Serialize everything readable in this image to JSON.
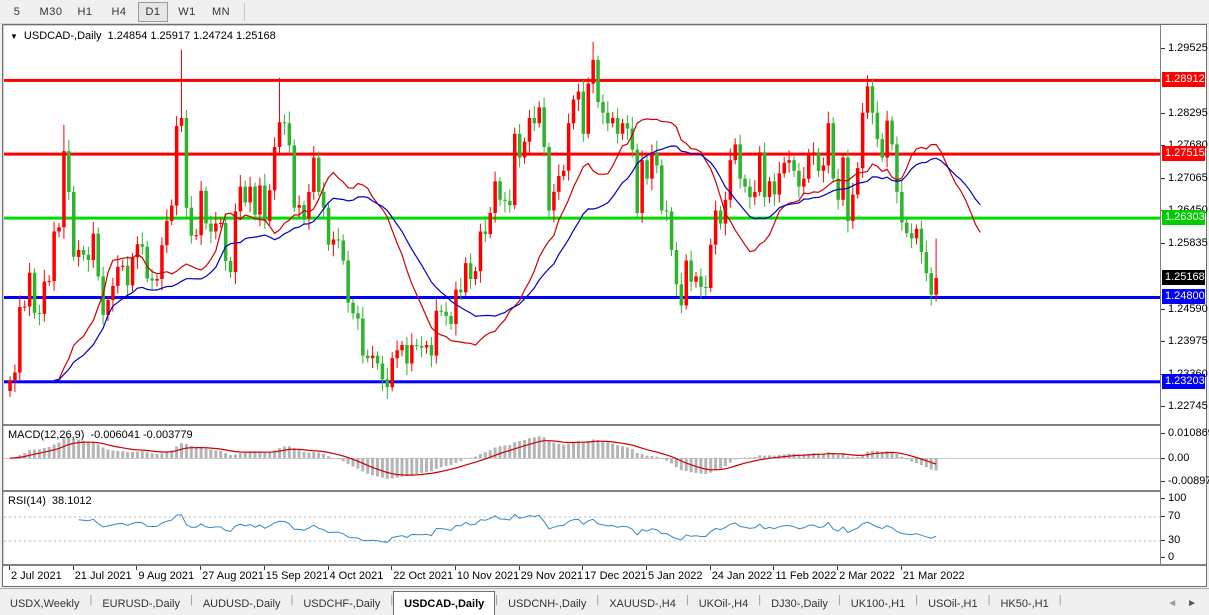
{
  "toolbar": {
    "items": [
      {
        "label": "5",
        "active": false
      },
      {
        "label": "M30",
        "active": false
      },
      {
        "label": "H1",
        "active": false
      },
      {
        "label": "H4",
        "active": false
      },
      {
        "label": "D1",
        "active": true
      },
      {
        "label": "W1",
        "active": false
      },
      {
        "label": "MN",
        "active": false
      }
    ]
  },
  "chart": {
    "dropdown_icon": "▼",
    "title": "USDCAD-,Daily",
    "ohlc": "1.24854 1.25917 1.24724 1.25168"
  },
  "price_axis": {
    "ticks": [
      "1.29525",
      "1.28295",
      "1.27680",
      "1.27065",
      "1.26450",
      "1.25835",
      "1.24590",
      "1.23975",
      "1.23360",
      "1.22745"
    ],
    "badges": [
      {
        "value": "1.28912",
        "bg": "#ff0000"
      },
      {
        "value": "1.27515",
        "bg": "#ff0000"
      },
      {
        "value": "1.26303",
        "bg": "#00cc00"
      },
      {
        "value": "1.25168",
        "bg": "#000000"
      },
      {
        "value": "1.24800",
        "bg": "#0000ff"
      },
      {
        "value": "1.23203",
        "bg": "#0000ff"
      }
    ]
  },
  "macd_panel": {
    "label": "MACD(12,26,9)",
    "values": "-0.006041 -0.003779",
    "axis": [
      "0.010869",
      "0.00",
      "-0.008974"
    ]
  },
  "rsi_panel": {
    "label": "RSI(14)",
    "value": "38.1012",
    "axis": [
      "100",
      "70",
      "30",
      "0"
    ]
  },
  "tabs": {
    "items": [
      "USDX,Weekly",
      "EURUSD-,Daily",
      "AUDUSD-,Daily",
      "USDCHF-,Daily",
      "USDCAD-,Daily",
      "USDCNH-,Daily",
      "XAUUSD-,H4",
      "UKOil-,H4",
      "DJ30-,Daily",
      "UK100-,H1",
      "USOil-,H1",
      "HK50-,H1"
    ],
    "active": "USDCAD-,Daily",
    "scroll_left": "◄",
    "scroll_right": "►"
  },
  "chart_data": {
    "type": "candlestick",
    "symbol": "USDCAD-",
    "timeframe": "Daily",
    "last_bar": {
      "open": 1.24854,
      "high": 1.25917,
      "low": 1.24724,
      "close": 1.25168
    },
    "ylim": [
      1.2239,
      1.2985
    ],
    "up_color": "#ff0000",
    "down_color": "#2db32d",
    "hlines": [
      {
        "price": 1.28912,
        "color": "#ff0000"
      },
      {
        "price": 1.27515,
        "color": "#ff0000"
      },
      {
        "price": 1.26303,
        "color": "#00dd00"
      },
      {
        "price": 1.248,
        "color": "#0000ff"
      },
      {
        "price": 1.23203,
        "color": "#0000ff"
      }
    ],
    "ma": [
      {
        "type": "ema",
        "period": 12,
        "shift": 9,
        "color": "#cc0000"
      },
      {
        "type": "ema",
        "period": 26,
        "shift": 9,
        "color": "#0000bb"
      }
    ],
    "macd": {
      "fast": 12,
      "slow": 26,
      "signal": 9,
      "hist_color": "#b5b5b5",
      "signal_color": "#cc0000",
      "current": -0.006041,
      "current_signal": -0.003779,
      "axis_max": 0.010869,
      "axis_min": -0.008974
    },
    "rsi": {
      "period": 14,
      "color": "#3388cc",
      "levels": [
        70,
        30
      ],
      "current": 38.1012
    },
    "x_labels": [
      "2 Jul 2021",
      "21 Jul 2021",
      "9 Aug 2021",
      "27 Aug 2021",
      "15 Sep 2021",
      "4 Oct 2021",
      "22 Oct 2021",
      "10 Nov 2021",
      "29 Nov 2021",
      "17 Dec 2021",
      "5 Jan 2022",
      "24 Jan 2022",
      "11 Feb 2022",
      "2 Mar 2022",
      "21 Mar 2022"
    ],
    "bars_per_label": 13,
    "closes": [
      1.2323,
      1.2338,
      1.2462,
      1.2463,
      1.2527,
      1.2451,
      1.2449,
      1.251,
      1.2511,
      1.2605,
      1.2613,
      1.2757,
      1.268,
      1.2557,
      1.257,
      1.2561,
      1.2551,
      1.2601,
      1.252,
      1.2447,
      1.2475,
      1.2502,
      1.2538,
      1.254,
      1.2503,
      1.2556,
      1.2581,
      1.2576,
      1.2516,
      1.2512,
      1.2515,
      1.2579,
      1.2625,
      1.2654,
      1.2805,
      1.282,
      1.265,
      1.2597,
      1.2598,
      1.2682,
      1.262,
      1.2605,
      1.262,
      1.2621,
      1.2549,
      1.2528,
      1.2643,
      1.269,
      1.266,
      1.269,
      1.2637,
      1.2692,
      1.2625,
      1.2683,
      1.2765,
      1.2812,
      1.281,
      1.2768,
      1.265,
      1.2655,
      1.263,
      1.268,
      1.2745,
      1.268,
      1.265,
      1.258,
      1.259,
      1.2588,
      1.255,
      1.247,
      1.245,
      1.244,
      1.237,
      1.2365,
      1.237,
      1.2355,
      1.2325,
      1.231,
      1.2365,
      1.238,
      1.239,
      1.2355,
      1.239,
      1.2388,
      1.2385,
      1.239,
      1.237,
      1.2455,
      1.2453,
      1.2445,
      1.243,
      1.2495,
      1.249,
      1.2545,
      1.2515,
      1.253,
      1.2605,
      1.26,
      1.264,
      1.27,
      1.2665,
      1.2663,
      1.2655,
      1.279,
      1.2745,
      1.2775,
      1.282,
      1.281,
      1.284,
      1.2765,
      1.2645,
      1.268,
      1.271,
      1.272,
      1.281,
      1.2855,
      1.287,
      1.279,
      1.2885,
      1.293,
      1.285,
      1.283,
      1.281,
      1.282,
      1.279,
      1.281,
      1.28,
      1.276,
      1.264,
      1.274,
      1.2705,
      1.2755,
      1.273,
      1.2645,
      1.2643,
      1.257,
      1.2505,
      1.2465,
      1.255,
      1.251,
      1.252,
      1.25,
      1.2498,
      1.258,
      1.2645,
      1.262,
      1.2665,
      1.274,
      1.277,
      1.2705,
      1.269,
      1.267,
      1.268,
      1.2755,
      1.267,
      1.27,
      1.2675,
      1.2715,
      1.2735,
      1.274,
      1.272,
      1.269,
      1.2705,
      1.275,
      1.2755,
      1.272,
      1.273,
      1.281,
      1.2705,
      1.2665,
      1.2745,
      1.2625,
      1.2675,
      1.2725,
      1.283,
      1.288,
      1.283,
      1.278,
      1.2745,
      1.2815,
      1.277,
      1.268,
      1.2622,
      1.2602,
      1.2592,
      1.261,
      1.2566,
      1.2526,
      1.24854,
      1.25168
    ],
    "hi_overrides": {
      "11": 1.2807,
      "35": 1.2949,
      "55": 1.2896,
      "119": 1.2964,
      "175": 1.2901,
      "189": 1.25917
    },
    "lo_overrides": {
      "77": 1.2288,
      "137": 1.245,
      "188": 1.2465,
      "189": 1.24724
    }
  }
}
